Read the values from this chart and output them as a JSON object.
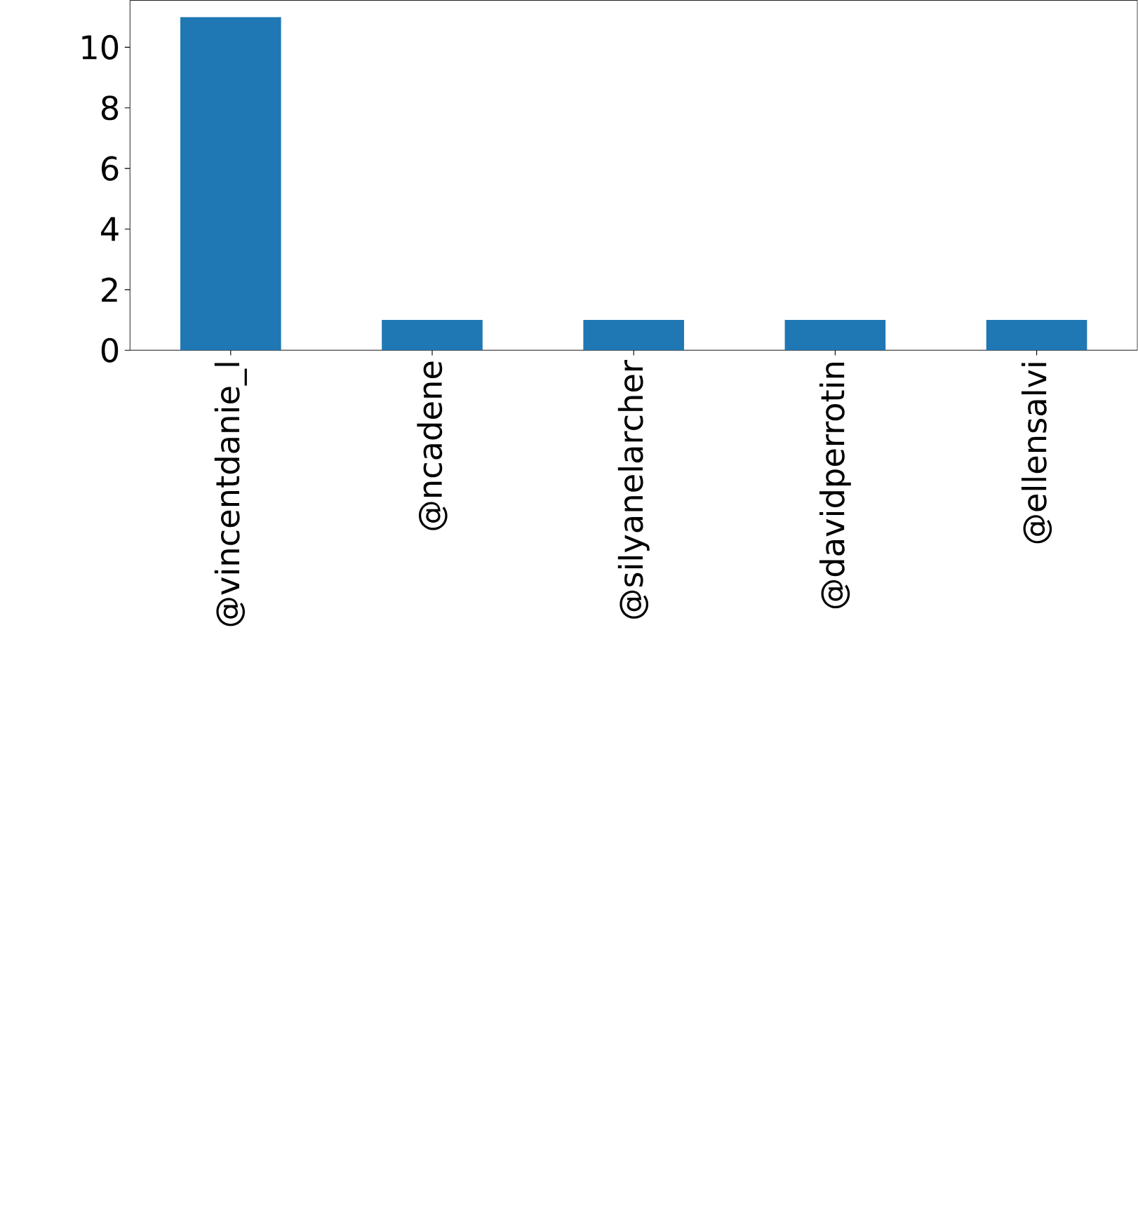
{
  "chart_data": {
    "type": "bar",
    "categories": [
      "@vincentdanie_l",
      "@ncadene",
      "@silyanelarcher",
      "@davidperrotin",
      "@ellensalvi"
    ],
    "values": [
      11,
      1,
      1,
      1,
      1
    ],
    "color": "#1f77b4",
    "ylim": [
      0,
      11.55
    ],
    "yticks": [
      0,
      2,
      4,
      6,
      8,
      10
    ]
  }
}
